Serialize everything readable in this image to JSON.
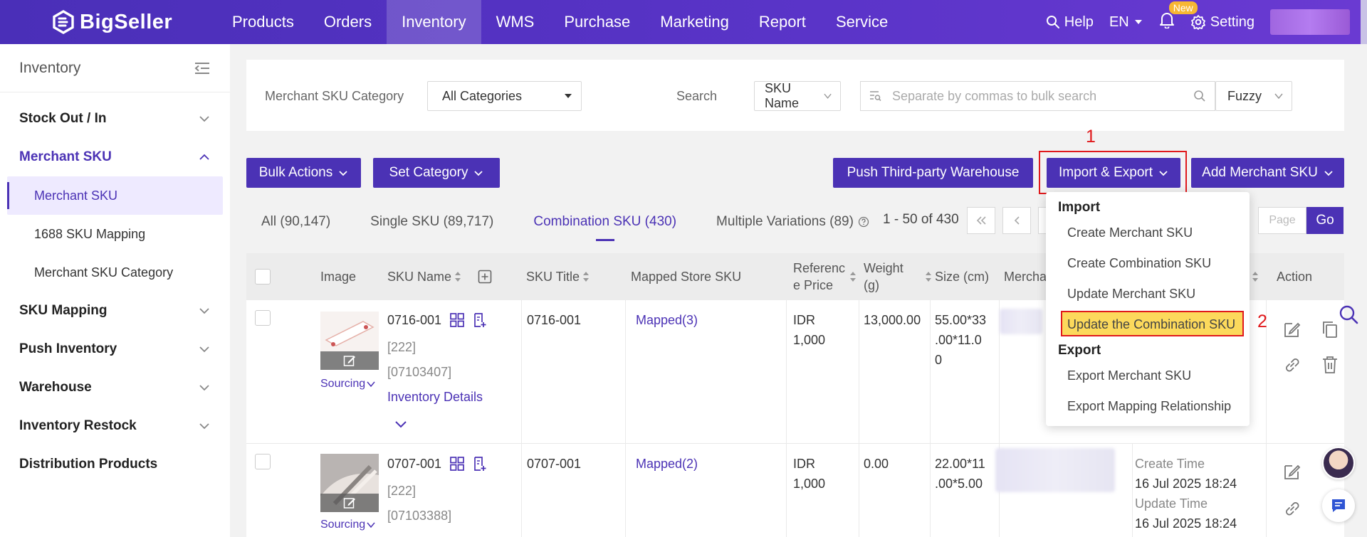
{
  "brand": {
    "name": "BigSeller"
  },
  "nav": {
    "items": [
      "Products",
      "Orders",
      "Inventory",
      "WMS",
      "Purchase",
      "Marketing",
      "Report",
      "Service"
    ],
    "active": "Inventory",
    "help": "Help",
    "lang": "EN",
    "new_badge": "New",
    "setting": "Setting"
  },
  "sidebar": {
    "title": "Inventory",
    "items": {
      "stock": "Stock Out / In",
      "merchant_sku": "Merchant SKU",
      "sub_merchant_sku": "Merchant SKU",
      "sub_1688": "1688 SKU Mapping",
      "sub_category": "Merchant SKU Category",
      "sku_mapping": "SKU Mapping",
      "push_inventory": "Push Inventory",
      "warehouse": "Warehouse",
      "restock": "Inventory Restock",
      "distribution": "Distribution Products"
    }
  },
  "filter": {
    "category_label": "Merchant SKU Category",
    "category_value": "All Categories",
    "search_label": "Search",
    "search_field": "SKU Name",
    "search_placeholder": "Separate by commas to bulk search",
    "match_mode": "Fuzzy"
  },
  "toolbar": {
    "bulk_actions": "Bulk Actions",
    "set_category": "Set Category",
    "push_third_party": "Push Third-party Warehouse",
    "import_export": "Import & Export",
    "add_merchant_sku": "Add Merchant SKU"
  },
  "callouts": {
    "one": "1",
    "two": "2"
  },
  "tabs": {
    "all": "All (90,147)",
    "single": "Single SKU (89,717)",
    "combination": "Combination SKU (430)",
    "multiple": "Multiple Variations (89)"
  },
  "pager": {
    "range": "1 - 50 of 430",
    "page_placeholder": "Page",
    "go": "Go"
  },
  "table": {
    "headers": {
      "image": "Image",
      "sku_name": "SKU Name",
      "sku_title": "SKU Title",
      "mapped": "Mapped Store SKU",
      "ref_price_1": "Referenc",
      "ref_price_2": "e Price",
      "weight_1": "Weight",
      "weight_2": "(g)",
      "size": "Size (cm)",
      "merchant": "Mercha",
      "action": "Action"
    },
    "rows": [
      {
        "sourcing": "Sourcing",
        "sku": "0716-001",
        "code1": "[222]",
        "code2": "[07103407]",
        "inventory_details": "Inventory Details",
        "title": "0716-001",
        "mapped": "Mapped(3)",
        "price_cur": "IDR",
        "price_val": "1,000",
        "weight": "13,000.00",
        "size_1": "55.00*33",
        "size_2": ".00*11.0",
        "size_3": "0"
      },
      {
        "sourcing": "Sourcing",
        "sku": "0707-001",
        "code1": "[222]",
        "code2": "[07103388]",
        "title": "0707-001",
        "mapped": "Mapped(2)",
        "price_cur": "IDR",
        "price_val": "1,000",
        "weight": "0.00",
        "size_1": "22.00*11",
        "size_2": ".00*5.00",
        "create_label": "Create Time",
        "create_val": "16 Jul 2025 18:24",
        "update_label": "Update Time",
        "update_val": "16 Jul 2025 18:24"
      }
    ]
  },
  "dropdown": {
    "import_label": "Import",
    "items_import": [
      "Create Merchant SKU",
      "Create Combination SKU",
      "Update Merchant SKU",
      "Update the Combination SKU"
    ],
    "export_label": "Export",
    "items_export": [
      "Export Merchant SKU",
      "Export Mapping Relationship"
    ]
  },
  "colors": {
    "primary": "#4b32b5",
    "highlight": "#fcd95c",
    "annotation": "#e0191c"
  }
}
